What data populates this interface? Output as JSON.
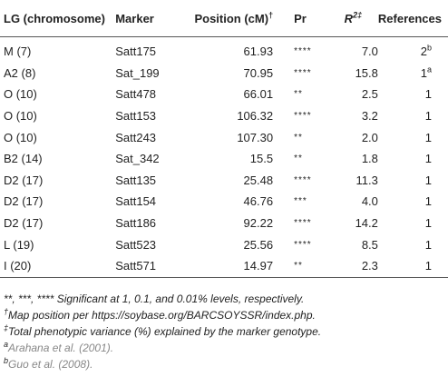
{
  "headers": {
    "lg": "LG (chromosome)",
    "marker": "Marker",
    "position": "Position (cM)",
    "position_sup": "†",
    "pr": "Pr",
    "r2_base": "R",
    "r2_sup": "2‡",
    "references": "References"
  },
  "rows": [
    {
      "lg": "M (7)",
      "marker": "Satt175",
      "position": "61.93",
      "pr": "****",
      "r2": "7.0",
      "ref": "2",
      "ref_sup": "b"
    },
    {
      "lg": "A2 (8)",
      "marker": "Sat_199",
      "position": "70.95",
      "pr": "****",
      "r2": "15.8",
      "ref": "1",
      "ref_sup": "a"
    },
    {
      "lg": "O (10)",
      "marker": "Satt478",
      "position": "66.01",
      "pr": "**",
      "r2": "2.5",
      "ref": "1",
      "ref_sup": ""
    },
    {
      "lg": "O (10)",
      "marker": "Satt153",
      "position": "106.32",
      "pr": "****",
      "r2": "3.2",
      "ref": "1",
      "ref_sup": ""
    },
    {
      "lg": "O (10)",
      "marker": "Satt243",
      "position": "107.30",
      "pr": "**",
      "r2": "2.0",
      "ref": "1",
      "ref_sup": ""
    },
    {
      "lg": "B2 (14)",
      "marker": "Sat_342",
      "position": "15.5",
      "pr": "**",
      "r2": "1.8",
      "ref": "1",
      "ref_sup": ""
    },
    {
      "lg": "D2 (17)",
      "marker": "Satt135",
      "position": "25.48",
      "pr": "****",
      "r2": "11.3",
      "ref": "1",
      "ref_sup": ""
    },
    {
      "lg": "D2 (17)",
      "marker": "Satt154",
      "position": "46.76",
      "pr": "***",
      "r2": "4.0",
      "ref": "1",
      "ref_sup": ""
    },
    {
      "lg": "D2 (17)",
      "marker": "Satt186",
      "position": "92.22",
      "pr": "****",
      "r2": "14.2",
      "ref": "1",
      "ref_sup": ""
    },
    {
      "lg": "L (19)",
      "marker": "Satt523",
      "position": "25.56",
      "pr": "****",
      "r2": "8.5",
      "ref": "1",
      "ref_sup": ""
    },
    {
      "lg": "I (20)",
      "marker": "Satt571",
      "position": "14.97",
      "pr": "**",
      "r2": "2.3",
      "ref": "1",
      "ref_sup": ""
    }
  ],
  "footnotes": {
    "significance": "**, ***, **** Significant at 1, 0.1, and 0.01% levels, respectively.",
    "map_sup": "†",
    "map": "Map position per https://soybase.org/BARCSOYSSR/index.php.",
    "variance_sup": "‡",
    "variance": "Total phenotypic variance (%) explained by the marker genotype.",
    "ref_a_sup": "a",
    "ref_a": "Arahana et al. (2001).",
    "ref_b_sup": "b",
    "ref_b": "Guo et al. (2008)."
  }
}
